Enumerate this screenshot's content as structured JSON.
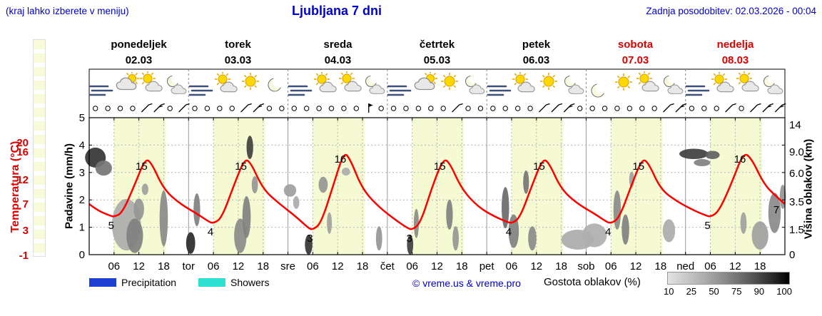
{
  "header": {
    "hint": "(kraj lahko izberete v meniju)",
    "title": "Ljubljana 7 dni",
    "updated": "Zadnja posodobitev: 02.03.2026 - 00:04"
  },
  "colors": {
    "blue": "#0000cd",
    "red_axis": "#dd0000",
    "curve": "#ff0000",
    "day_band": "#f5fad2",
    "weekend": "#dd0000",
    "precip_legend": "#1f3fd0",
    "showers_legend": "#2ee0d0",
    "grid": "#b5b5b5",
    "frame": "#000000"
  },
  "days": [
    {
      "name": "ponedeljek",
      "date": "02.03",
      "weekend": false,
      "icons": [
        "wind",
        "cloud-sun",
        "sun-cloud",
        "moon-cloud"
      ]
    },
    {
      "name": "torek",
      "date": "03.03",
      "weekend": false,
      "icons": [
        "wind",
        "sun-cloud",
        "sun",
        "moon"
      ]
    },
    {
      "name": "sreda",
      "date": "04.03",
      "weekend": false,
      "icons": [
        "wind",
        "sun-cloud",
        "sun-cloud",
        "moon-cloud"
      ]
    },
    {
      "name": "četrtek",
      "date": "05.03",
      "weekend": false,
      "icons": [
        "wind",
        "cloud-sun",
        "sun",
        "moon-cloud"
      ]
    },
    {
      "name": "petek",
      "date": "06.03",
      "weekend": false,
      "icons": [
        "wind",
        "sun-cloud",
        "sun",
        "moon-cloud"
      ]
    },
    {
      "name": "sobota",
      "date": "07.03",
      "weekend": true,
      "icons": [
        "moon",
        "sun",
        "sun-cloud",
        "moon-cloud"
      ]
    },
    {
      "name": "nedelja",
      "date": "08.03",
      "weekend": true,
      "icons": [
        "wind",
        "sun-cloud",
        "sun-cloud",
        "moon-cloud"
      ]
    }
  ],
  "axes": {
    "temp_label": "Temperatura (°C)",
    "temp_ticks": [
      "20",
      "16",
      "12",
      "7",
      "3",
      "-1"
    ],
    "precip_label": "Padavine (mm/h)",
    "precip_ticks": [
      "5",
      "4",
      "3",
      "2",
      "1",
      "0"
    ],
    "cloud_label": "Višina oblakov (km)",
    "cloud_ticks": [
      "14",
      "9.0",
      "6.0",
      "3.5",
      "1.5",
      "0"
    ],
    "x_hour_labels": [
      "06",
      "12",
      "18"
    ],
    "day_abbrevs": [
      "tor",
      "sre",
      "čet",
      "pet",
      "sob",
      "ned"
    ]
  },
  "legend": {
    "precipitation": "Precipitation",
    "showers": "Showers",
    "credit": "© vreme.us & vreme.pro",
    "cloud_density": "Gostota oblakov (%)",
    "density_ticks": [
      "10",
      "25",
      "50",
      "75",
      "90",
      "100"
    ]
  },
  "chart_data": {
    "type": "line",
    "title": "Ljubljana 7 dni",
    "x_unit": "hours from 02.03 00:00",
    "x_range": [
      0,
      168
    ],
    "day_band_hours": [
      6,
      18.5
    ],
    "temp_axis": {
      "label": "Temperatura (°C)",
      "ticks": [
        20,
        16,
        12,
        7,
        3,
        -1
      ]
    },
    "precip_axis": {
      "label": "Padavine (mm/h)",
      "ticks": [
        5,
        4,
        3,
        2,
        1,
        0
      ]
    },
    "cloud_axis": {
      "label": "Višina oblakov (km)",
      "ticks": [
        14,
        9.0,
        6.0,
        3.5,
        1.5,
        0
      ]
    },
    "daily_min_max": {
      "min": [
        5,
        4,
        3,
        3,
        4,
        4,
        5
      ],
      "max": [
        15,
        15,
        16,
        15,
        15,
        15,
        16
      ],
      "end_temp": 7
    },
    "temp_points": [
      [
        0,
        7
      ],
      [
        2,
        6
      ],
      [
        5,
        5.2
      ],
      [
        6,
        5
      ],
      [
        8,
        5.6
      ],
      [
        11,
        11
      ],
      [
        13.5,
        15
      ],
      [
        15,
        14.5
      ],
      [
        18,
        10
      ],
      [
        22,
        7
      ],
      [
        26,
        5.5
      ],
      [
        29,
        4.2
      ],
      [
        30,
        4
      ],
      [
        32,
        4.8
      ],
      [
        35,
        11
      ],
      [
        37.5,
        15
      ],
      [
        39,
        14.5
      ],
      [
        42,
        10
      ],
      [
        46,
        7
      ],
      [
        50,
        5
      ],
      [
        53,
        3.2
      ],
      [
        54,
        3
      ],
      [
        56,
        4
      ],
      [
        59,
        11
      ],
      [
        61.5,
        16
      ],
      [
        63,
        15
      ],
      [
        66,
        10
      ],
      [
        70,
        6.5
      ],
      [
        74,
        4.5
      ],
      [
        77,
        3.2
      ],
      [
        78,
        3
      ],
      [
        80,
        4
      ],
      [
        83,
        11
      ],
      [
        85.5,
        15
      ],
      [
        87,
        14.5
      ],
      [
        90,
        10
      ],
      [
        94,
        6.5
      ],
      [
        98,
        5
      ],
      [
        101,
        4.2
      ],
      [
        102,
        4
      ],
      [
        104,
        4.8
      ],
      [
        107,
        11
      ],
      [
        109.5,
        15
      ],
      [
        111,
        14.5
      ],
      [
        114,
        10
      ],
      [
        118,
        7
      ],
      [
        122,
        5.5
      ],
      [
        125,
        4.2
      ],
      [
        126,
        4
      ],
      [
        128,
        4.8
      ],
      [
        131,
        11
      ],
      [
        133.5,
        15
      ],
      [
        135,
        14.5
      ],
      [
        138,
        10
      ],
      [
        142,
        7.5
      ],
      [
        146,
        6
      ],
      [
        149,
        5.2
      ],
      [
        150,
        5
      ],
      [
        152,
        5.8
      ],
      [
        155,
        11
      ],
      [
        158,
        16
      ],
      [
        160,
        15
      ],
      [
        163,
        11
      ],
      [
        166,
        8.5
      ],
      [
        168,
        7
      ]
    ],
    "value_labels": [
      {
        "t": 6,
        "v": 5,
        "text": "5",
        "kind": "min"
      },
      {
        "t": 30,
        "v": 4,
        "text": "4",
        "kind": "min"
      },
      {
        "t": 54,
        "v": 3,
        "text": "3",
        "kind": "min"
      },
      {
        "t": 78,
        "v": 3,
        "text": "3",
        "kind": "min"
      },
      {
        "t": 102,
        "v": 4,
        "text": "4",
        "kind": "min"
      },
      {
        "t": 126,
        "v": 4,
        "text": "4",
        "kind": "min"
      },
      {
        "t": 150,
        "v": 5,
        "text": "5",
        "kind": "min"
      },
      {
        "t": 13.5,
        "v": 15,
        "text": "15",
        "kind": "max"
      },
      {
        "t": 37.5,
        "v": 15,
        "text": "15",
        "kind": "max"
      },
      {
        "t": 61.5,
        "v": 16,
        "text": "16",
        "kind": "max"
      },
      {
        "t": 85.5,
        "v": 15,
        "text": "15",
        "kind": "max"
      },
      {
        "t": 109.5,
        "v": 15,
        "text": "15",
        "kind": "max"
      },
      {
        "t": 133.5,
        "v": 15,
        "text": "15",
        "kind": "max"
      },
      {
        "t": 158,
        "v": 16,
        "text": "16",
        "kind": "max"
      },
      {
        "t": 168,
        "v": 7,
        "text": "7",
        "kind": "end"
      }
    ],
    "clouds": [
      [
        1.5,
        8.3,
        5,
        3,
        0.85
      ],
      [
        3.5,
        6.8,
        4,
        2,
        0.55
      ],
      [
        9,
        2,
        7,
        3.5,
        0.3
      ],
      [
        11,
        1.2,
        4,
        2.2,
        0.5
      ],
      [
        12,
        3,
        2.5,
        1.6,
        0.4
      ],
      [
        13.5,
        4.6,
        1.6,
        1,
        0.35
      ],
      [
        18,
        2.5,
        2,
        4,
        0.45
      ],
      [
        24.5,
        0.7,
        2.2,
        1.3,
        0.9
      ],
      [
        26,
        3,
        1.6,
        2.5,
        0.5
      ],
      [
        36.5,
        1.2,
        3,
        2.2,
        0.45
      ],
      [
        38,
        2.5,
        2,
        3,
        0.5
      ],
      [
        38.8,
        10,
        1.6,
        4,
        0.8
      ],
      [
        40,
        5,
        1.5,
        1.5,
        0.4
      ],
      [
        48.5,
        4.5,
        3,
        1.1,
        0.35
      ],
      [
        50,
        3.5,
        1.5,
        1,
        0.3
      ],
      [
        53,
        0.6,
        1.8,
        1.2,
        0.85
      ],
      [
        56.5,
        5,
        2.2,
        1.4,
        0.4
      ],
      [
        58,
        2,
        1.2,
        1.5,
        0.35
      ],
      [
        62,
        6.3,
        2,
        1,
        0.3
      ],
      [
        70,
        1,
        1.5,
        1.5,
        0.4
      ],
      [
        77.5,
        0.6,
        1.5,
        1.2,
        0.8
      ],
      [
        79,
        2,
        1.2,
        2,
        0.45
      ],
      [
        87,
        2.6,
        1.6,
        2.2,
        0.5
      ],
      [
        88.5,
        1,
        1.5,
        1.5,
        0.4
      ],
      [
        100.5,
        3.2,
        1.8,
        3.2,
        0.6
      ],
      [
        102.5,
        1.5,
        2.5,
        2.2,
        0.5
      ],
      [
        105.5,
        5.3,
        1.4,
        2.2,
        0.55
      ],
      [
        107,
        1,
        2,
        1.5,
        0.45
      ],
      [
        118,
        0.9,
        8,
        1.2,
        0.3
      ],
      [
        122,
        1.2,
        6,
        1.5,
        0.28
      ],
      [
        127.5,
        3,
        1.8,
        3,
        0.45
      ],
      [
        129.5,
        1.6,
        1.8,
        2,
        0.5
      ],
      [
        131,
        5.5,
        1.2,
        1.5,
        0.35
      ],
      [
        140,
        1.5,
        3,
        1.5,
        0.3
      ],
      [
        146,
        8.8,
        7,
        1.6,
        0.8
      ],
      [
        150.5,
        8.6,
        3.5,
        1.2,
        0.65
      ],
      [
        148,
        7.5,
        4,
        1,
        0.5
      ],
      [
        158,
        2,
        1.5,
        1.5,
        0.35
      ],
      [
        162,
        1.2,
        4,
        1.8,
        0.35
      ],
      [
        165.5,
        2.8,
        3,
        3,
        0.45
      ],
      [
        167.5,
        4,
        1.5,
        2,
        0.4
      ]
    ],
    "wind": [
      [
        "c",
        "c",
        "c",
        "c",
        "b1",
        "b2",
        "c",
        "b1"
      ],
      [
        "c",
        "c",
        "c",
        "c",
        "b1",
        "b2",
        "c",
        "c"
      ],
      [
        "c",
        "c",
        "c",
        "c",
        "c",
        "c",
        "f",
        "c"
      ],
      [
        "c",
        "c",
        "c",
        "c",
        "c",
        "b1",
        "c",
        "c"
      ],
      [
        "c",
        "c",
        "c",
        "c",
        "b1",
        "b1",
        "b2",
        "c"
      ],
      [
        "c",
        "c",
        "c",
        "c",
        "c",
        "c",
        "b1",
        "b2"
      ],
      [
        "c",
        "c",
        "c",
        "b1",
        "c",
        "b1",
        "b2",
        "b2"
      ]
    ]
  }
}
